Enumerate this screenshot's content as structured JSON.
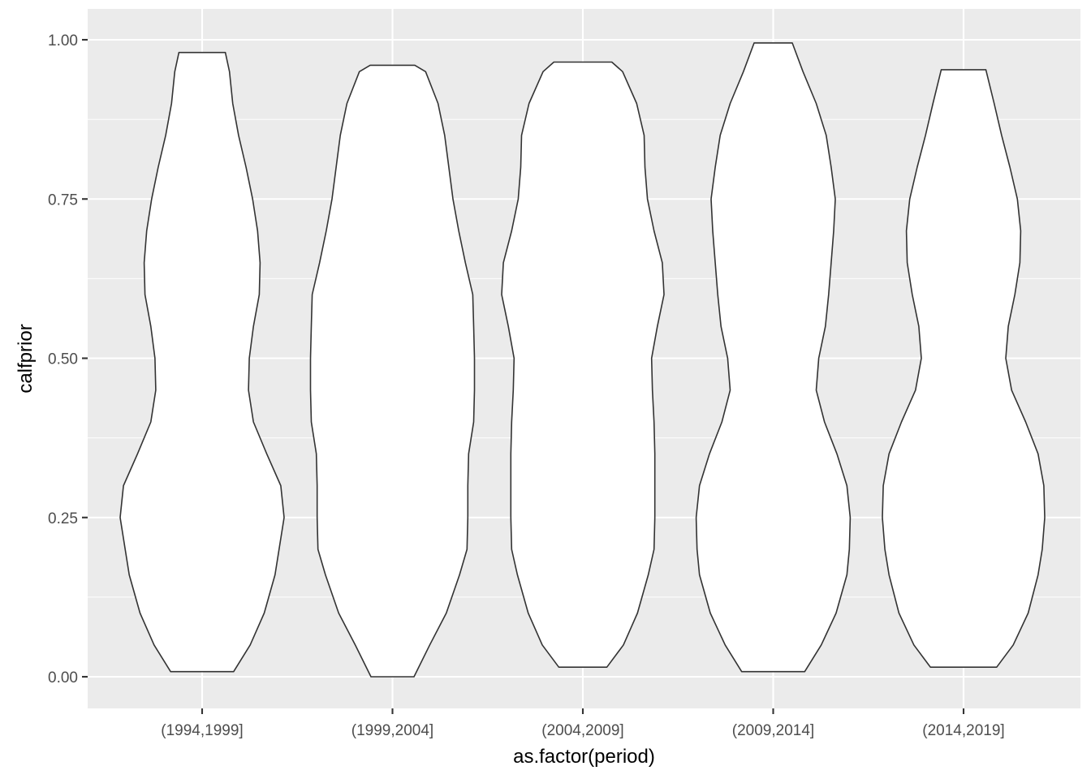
{
  "chart_data": {
    "type": "violin",
    "title": "",
    "xlabel": "as.factor(period)",
    "ylabel": "calfprior",
    "ylim": [
      -0.05,
      1.04
    ],
    "yticks": [
      0.0,
      0.25,
      0.5,
      0.75,
      1.0
    ],
    "ytick_labels": [
      "0.00",
      "0.25",
      "0.50",
      "0.75",
      "1.00"
    ],
    "categories": [
      "(1994,1999]",
      "(1999,2004]",
      "(2004,2009]",
      "(2009,2014]",
      "(2014,2019]"
    ],
    "grid": true,
    "legend": "none",
    "colors": {
      "panel": "#ebebeb",
      "grid": "#ffffff",
      "outline": "#333333",
      "fill": "#ffffff",
      "tick_text": "#4d4d4d"
    },
    "series": [
      {
        "category": "(1994,1999]",
        "y_min": 0.008,
        "y_max": 0.98,
        "density_profile": [
          [
            0.008,
            0.38
          ],
          [
            0.05,
            0.58
          ],
          [
            0.1,
            0.75
          ],
          [
            0.16,
            0.88
          ],
          [
            0.25,
            0.99
          ],
          [
            0.3,
            0.95
          ],
          [
            0.35,
            0.78
          ],
          [
            0.4,
            0.62
          ],
          [
            0.45,
            0.56
          ],
          [
            0.5,
            0.57
          ],
          [
            0.55,
            0.62
          ],
          [
            0.6,
            0.69
          ],
          [
            0.65,
            0.7
          ],
          [
            0.7,
            0.67
          ],
          [
            0.75,
            0.61
          ],
          [
            0.8,
            0.53
          ],
          [
            0.85,
            0.44
          ],
          [
            0.9,
            0.37
          ],
          [
            0.95,
            0.33
          ],
          [
            0.98,
            0.28
          ]
        ]
      },
      {
        "category": "(1999,2004]",
        "y_min": 0.0,
        "y_max": 0.96,
        "density_profile": [
          [
            0.0,
            0.26
          ],
          [
            0.05,
            0.45
          ],
          [
            0.1,
            0.65
          ],
          [
            0.16,
            0.81
          ],
          [
            0.2,
            0.9
          ],
          [
            0.25,
            0.91
          ],
          [
            0.3,
            0.91
          ],
          [
            0.35,
            0.92
          ],
          [
            0.4,
            0.98
          ],
          [
            0.45,
            0.99
          ],
          [
            0.5,
            0.99
          ],
          [
            0.55,
            0.98
          ],
          [
            0.6,
            0.97
          ],
          [
            0.65,
            0.88
          ],
          [
            0.7,
            0.8
          ],
          [
            0.75,
            0.73
          ],
          [
            0.8,
            0.68
          ],
          [
            0.85,
            0.63
          ],
          [
            0.9,
            0.55
          ],
          [
            0.95,
            0.4
          ],
          [
            0.96,
            0.27
          ]
        ]
      },
      {
        "category": "(2004,2009]",
        "y_min": 0.015,
        "y_max": 0.965,
        "density_profile": [
          [
            0.015,
            0.29
          ],
          [
            0.05,
            0.49
          ],
          [
            0.1,
            0.66
          ],
          [
            0.16,
            0.79
          ],
          [
            0.2,
            0.86
          ],
          [
            0.25,
            0.87
          ],
          [
            0.3,
            0.87
          ],
          [
            0.35,
            0.87
          ],
          [
            0.4,
            0.86
          ],
          [
            0.45,
            0.84
          ],
          [
            0.5,
            0.83
          ],
          [
            0.55,
            0.9
          ],
          [
            0.6,
            0.98
          ],
          [
            0.65,
            0.96
          ],
          [
            0.7,
            0.86
          ],
          [
            0.75,
            0.78
          ],
          [
            0.8,
            0.75
          ],
          [
            0.85,
            0.74
          ],
          [
            0.9,
            0.65
          ],
          [
            0.95,
            0.48
          ],
          [
            0.965,
            0.35
          ]
        ]
      },
      {
        "category": "(2009,2014]",
        "y_min": 0.008,
        "y_max": 0.995,
        "density_profile": [
          [
            0.008,
            0.38
          ],
          [
            0.05,
            0.58
          ],
          [
            0.1,
            0.76
          ],
          [
            0.16,
            0.89
          ],
          [
            0.2,
            0.92
          ],
          [
            0.25,
            0.93
          ],
          [
            0.3,
            0.89
          ],
          [
            0.35,
            0.77
          ],
          [
            0.4,
            0.62
          ],
          [
            0.45,
            0.52
          ],
          [
            0.5,
            0.55
          ],
          [
            0.55,
            0.63
          ],
          [
            0.6,
            0.67
          ],
          [
            0.65,
            0.7
          ],
          [
            0.7,
            0.73
          ],
          [
            0.75,
            0.75
          ],
          [
            0.8,
            0.7
          ],
          [
            0.85,
            0.64
          ],
          [
            0.9,
            0.52
          ],
          [
            0.95,
            0.36
          ],
          [
            0.995,
            0.23
          ]
        ]
      },
      {
        "category": "(2014,2019]",
        "y_min": 0.015,
        "y_max": 0.953,
        "density_profile": [
          [
            0.015,
            0.4
          ],
          [
            0.05,
            0.6
          ],
          [
            0.1,
            0.78
          ],
          [
            0.16,
            0.9
          ],
          [
            0.2,
            0.95
          ],
          [
            0.25,
            0.98
          ],
          [
            0.3,
            0.97
          ],
          [
            0.35,
            0.9
          ],
          [
            0.4,
            0.75
          ],
          [
            0.45,
            0.58
          ],
          [
            0.5,
            0.51
          ],
          [
            0.55,
            0.54
          ],
          [
            0.6,
            0.62
          ],
          [
            0.65,
            0.68
          ],
          [
            0.7,
            0.69
          ],
          [
            0.75,
            0.65
          ],
          [
            0.8,
            0.56
          ],
          [
            0.85,
            0.46
          ],
          [
            0.9,
            0.37
          ],
          [
            0.953,
            0.27
          ]
        ]
      }
    ]
  }
}
